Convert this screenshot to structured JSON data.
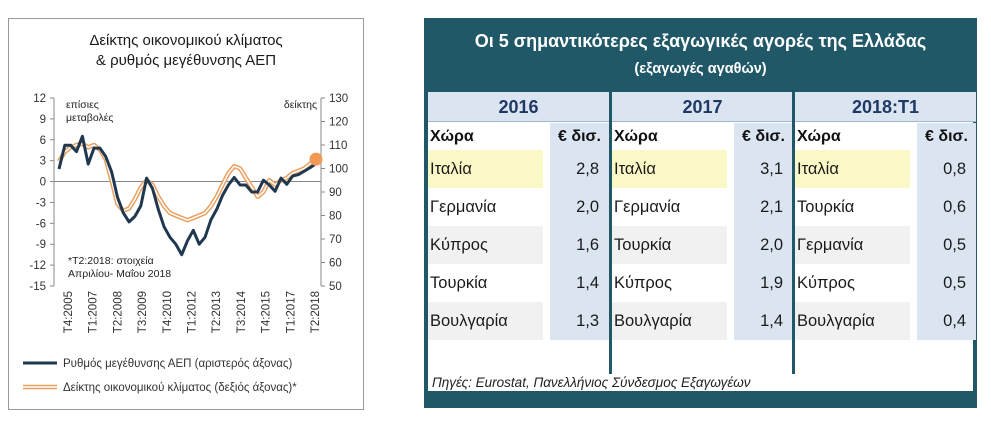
{
  "chart_data": {
    "type": "line",
    "title": "Δείκτης οικονομικού κλίματος\n& ρυθμός μεγέθυνσης ΑΕΠ",
    "left_axis": {
      "label": "επίσιες\nμεταβολές",
      "ylim": [
        -15,
        12
      ],
      "ticks": [
        "12",
        "9",
        "6",
        "3",
        "0",
        "-3",
        "-6",
        "-9",
        "-12",
        "-15"
      ]
    },
    "right_axis": {
      "label": "δείκτης",
      "ylim": [
        50,
        130
      ],
      "ticks": [
        "130",
        "120",
        "110",
        "100",
        "90",
        "80",
        "70",
        "60",
        "50"
      ]
    },
    "x_ticks": [
      "Τ4:2005",
      "Τ1:2007",
      "Τ2:2008",
      "Τ3:2009",
      "Τ4:2010",
      "Τ1:2012",
      "Τ2:2013",
      "Τ3:2014",
      "Τ4:2015",
      "Τ1:2017",
      "Τ2:2018"
    ],
    "series": [
      {
        "name": "Ρυθμός μεγέθυνσης ΑΕΠ (αριστερός άξονας)",
        "axis": "left",
        "color": "#1f3850",
        "values": [
          1.8,
          5.2,
          5.2,
          4.3,
          6.5,
          2.5,
          4.8,
          4.8,
          3.6,
          1.4,
          -2.2,
          -4.5,
          -5.8,
          -5.0,
          -3.5,
          0.5,
          -1.0,
          -4.0,
          -6.5,
          -8.0,
          -9.0,
          -10.5,
          -8.5,
          -7.0,
          -9.0,
          -8.0,
          -5.5,
          -4.0,
          -2.0,
          -0.5,
          0.6,
          -0.5,
          -0.5,
          -1.5,
          -1.5,
          0.2,
          -0.5,
          -1.4,
          0.5,
          -0.4,
          0.8,
          1.0,
          1.5,
          2.0,
          2.6
        ]
      },
      {
        "name": "Δείκτης οικονομικού κλίματος (δεξιός άξονας)*",
        "axis": "right",
        "color": "#e8a060",
        "values": [
          103,
          107,
          109,
          110,
          110.5,
          109,
          110,
          108,
          104,
          95,
          85,
          82,
          83,
          87,
          92,
          95,
          93,
          88,
          84,
          81,
          80,
          79,
          78,
          79,
          80,
          81,
          84,
          88,
          93,
          98,
          101,
          100,
          96,
          92,
          88,
          90,
          95,
          93,
          95,
          96,
          98,
          99,
          100,
          102,
          104
        ],
        "last_point_marker": true
      }
    ],
    "annotation": "*Τ2:2018: στοιχεία\nΑπριλίου- Μαΐου 2018",
    "grid": false,
    "legend_position": "bottom"
  },
  "table": {
    "title": "Οι 5 σημαντικότερες εξαγωγικές αγορές της Ελλάδας",
    "subtitle": "(εξαγωγές αγαθών)",
    "col_country": "Χώρα",
    "col_value": "€ δισ.",
    "source": "Πηγές: Eurostat, Πανελλήνιος Σύνδεσμος Εξαγωγέων",
    "years": [
      {
        "label": "2016",
        "rows": [
          {
            "country": "Ιταλία",
            "value": "2,8"
          },
          {
            "country": "Γερμανία",
            "value": "2,0"
          },
          {
            "country": "Κύπρος",
            "value": "1,6"
          },
          {
            "country": "Τουρκία",
            "value": "1,4"
          },
          {
            "country": "Βουλγαρία",
            "value": "1,3"
          }
        ]
      },
      {
        "label": "2017",
        "rows": [
          {
            "country": "Ιταλία",
            "value": "3,1"
          },
          {
            "country": "Γερμανία",
            "value": "2,1"
          },
          {
            "country": "Τουρκία",
            "value": "2,0"
          },
          {
            "country": "Κύπρος",
            "value": "1,9"
          },
          {
            "country": "Βουλγαρία",
            "value": "1,4"
          }
        ]
      },
      {
        "label": "2018:Τ1",
        "rows": [
          {
            "country": "Ιταλία",
            "value": "0,8"
          },
          {
            "country": "Τουρκία",
            "value": "0,6"
          },
          {
            "country": "Γερμανία",
            "value": "0,5"
          },
          {
            "country": "Κύπρος",
            "value": "0,5"
          },
          {
            "country": "Βουλγαρία",
            "value": "0,4"
          }
        ]
      }
    ],
    "colors": {
      "header_bg": "#215868",
      "year_bg": "#dbe5f1",
      "highlight": "#fbf8c8",
      "alt_row": "#f1f1f1"
    }
  }
}
